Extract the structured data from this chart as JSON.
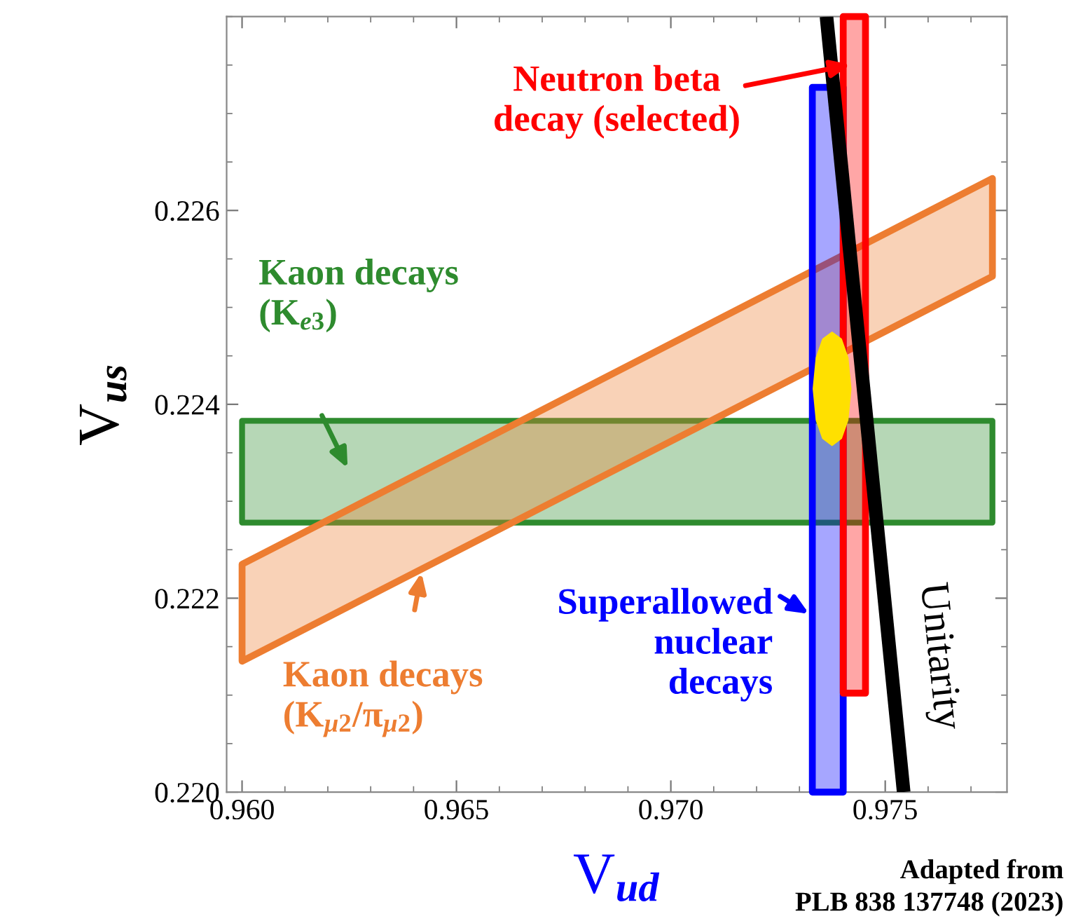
{
  "chart_data": {
    "type": "line",
    "xlabel": "V$_{ud}$",
    "ylabel": "V$_{us}$",
    "xlim": [
      0.95964,
      0.97784
    ],
    "ylim": [
      0.22,
      0.228
    ],
    "xticks": [
      {
        "value": 0.96,
        "label": "0.960"
      },
      {
        "value": 0.965,
        "label": "0.965"
      },
      {
        "value": 0.97,
        "label": "0.970"
      },
      {
        "value": 0.975,
        "label": "0.975"
      }
    ],
    "yticks": [
      {
        "value": 0.22,
        "label": "0.220"
      },
      {
        "value": 0.222,
        "label": "0.222"
      },
      {
        "value": 0.224,
        "label": "0.224"
      },
      {
        "value": 0.226,
        "label": "0.226"
      }
    ],
    "grid": false,
    "series": [
      {
        "name": "Kaon decays\n(K$_{e3}$)",
        "color": "#2e8b2e",
        "x": [
          0.96,
          0.9775
        ],
        "values": [
          null,
          null
        ],
        "lower": [
          0.22278,
          0.22278
        ],
        "upper": [
          0.22383,
          0.22383
        ]
      },
      {
        "name": "Kaon decays\n(K$_{μ2}$/π$_{μ2}$)",
        "color": "#ed7d31",
        "x": [
          0.96,
          0.9775
        ],
        "values": [
          null,
          null
        ],
        "lower": [
          0.22135,
          0.22532
        ],
        "upper": [
          0.22235,
          0.22633
        ]
      },
      {
        "name": "Superallowed\nnuclear\ndecays",
        "color": "#0000ff",
        "x": [
          0.9733,
          0.97402
        ],
        "values": [
          null,
          null
        ],
        "lower": [
          0.22,
          0.22
        ],
        "upper": [
          0.22727,
          0.22727
        ]
      },
      {
        "name": "Neutron beta\ndecay (selected)",
        "color": "#ff0000",
        "x": [
          0.97402,
          0.97454
        ],
        "values": [
          null,
          null
        ],
        "lower": [
          0.22102,
          0.22102
        ],
        "upper": [
          0.228,
          0.228
        ]
      },
      {
        "name": "Unitarity",
        "color": "#000000",
        "x": [
          0.97363,
          0.97543
        ],
        "values": [
          0.228,
          0.22
        ]
      },
      {
        "color": "#ffe000",
        "x": [
          0.97333,
          0.9734,
          0.97355,
          0.97376,
          0.97397,
          0.97412,
          0.97419
        ],
        "values": [
          null,
          null,
          null,
          null,
          null,
          null,
          null
        ],
        "lower": [
          0.22416,
          0.22384,
          0.22365,
          0.22358,
          0.22365,
          0.22384,
          0.22416
        ],
        "upper": [
          0.22416,
          0.22448,
          0.22467,
          0.22474,
          0.22467,
          0.22448,
          0.22416
        ]
      }
    ],
    "annotations": [
      "Adapted from\nPLB 838 137748 (2023)"
    ]
  }
}
